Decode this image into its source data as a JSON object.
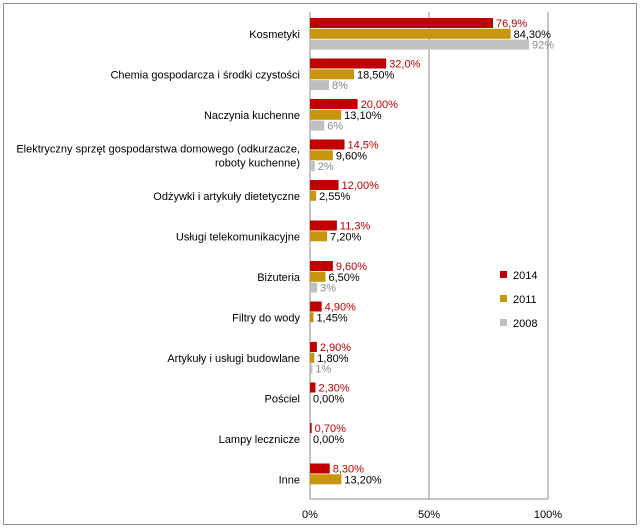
{
  "chart_data": {
    "type": "bar",
    "orientation": "horizontal",
    "xlim": [
      0,
      100
    ],
    "x_ticks": [
      "0%",
      "50%",
      "100%"
    ],
    "grid": true,
    "legend_position": "right",
    "categories": [
      "Kosmetyki",
      "Chemia gospodarcza i środki czystości",
      "Naczynia kuchenne",
      "Elektryczny sprzęt gospodarstwa domowego (odkurzacze, roboty kuchenne)",
      "Odżywki i artykuły dietetyczne",
      "Usługi telekomunikacyjne",
      "Biżuteria",
      "Filtry do wody",
      "Artykuły i usługi budowlane",
      "Pościel",
      "Lampy lecznicze",
      "Inne"
    ],
    "category_lines": [
      [
        "Kosmetyki"
      ],
      [
        "Chemia gospodarcza i środki czystości"
      ],
      [
        "Naczynia kuchenne"
      ],
      [
        "Elektryczny sprzęt gospodarstwa domowego (odkurzacze,",
        "roboty kuchenne)"
      ],
      [
        "Odżywki i artykuły dietetyczne"
      ],
      [
        "Usługi telekomunikacyjne"
      ],
      [
        "Biżuteria"
      ],
      [
        "Filtry do wody"
      ],
      [
        "Artykuły i usługi budowlane"
      ],
      [
        "Pościel"
      ],
      [
        "Lampy lecznicze"
      ],
      [
        "Inne"
      ]
    ],
    "series": [
      {
        "name": "2014",
        "color": "#c00000",
        "label_color": "#c00000",
        "values": [
          76.9,
          32.0,
          20.0,
          14.5,
          12.0,
          11.3,
          9.6,
          4.9,
          2.9,
          2.3,
          0.7,
          8.3
        ],
        "labels": [
          "76,9%",
          "32,0%",
          "20,00%",
          "14,5%",
          "12,00%",
          "11,3%",
          "9,60%",
          "4,90%",
          "2,90%",
          "2,30%",
          "0,70%",
          "8,30%"
        ]
      },
      {
        "name": "2011",
        "color": "#c8960c",
        "label_color": "#000000",
        "values": [
          84.3,
          18.5,
          13.1,
          9.6,
          2.55,
          7.2,
          6.5,
          1.45,
          1.8,
          0.0,
          0.0,
          13.2
        ],
        "labels": [
          "84,30%",
          "18,50%",
          "13,10%",
          "9,60%",
          "2,55%",
          "7,20%",
          "6,50%",
          "1,45%",
          "1,80%",
          "0,00%",
          "0,00%",
          "13,20%"
        ]
      },
      {
        "name": "2008",
        "color": "#c0c0c0",
        "label_color": "#8a8a8a",
        "values": [
          92,
          8,
          6,
          2,
          null,
          null,
          3,
          null,
          1,
          null,
          null,
          null
        ],
        "labels": [
          "92%",
          "8%",
          "6%",
          "2%",
          null,
          null,
          "3%",
          null,
          "1%",
          null,
          null,
          null
        ]
      }
    ]
  }
}
